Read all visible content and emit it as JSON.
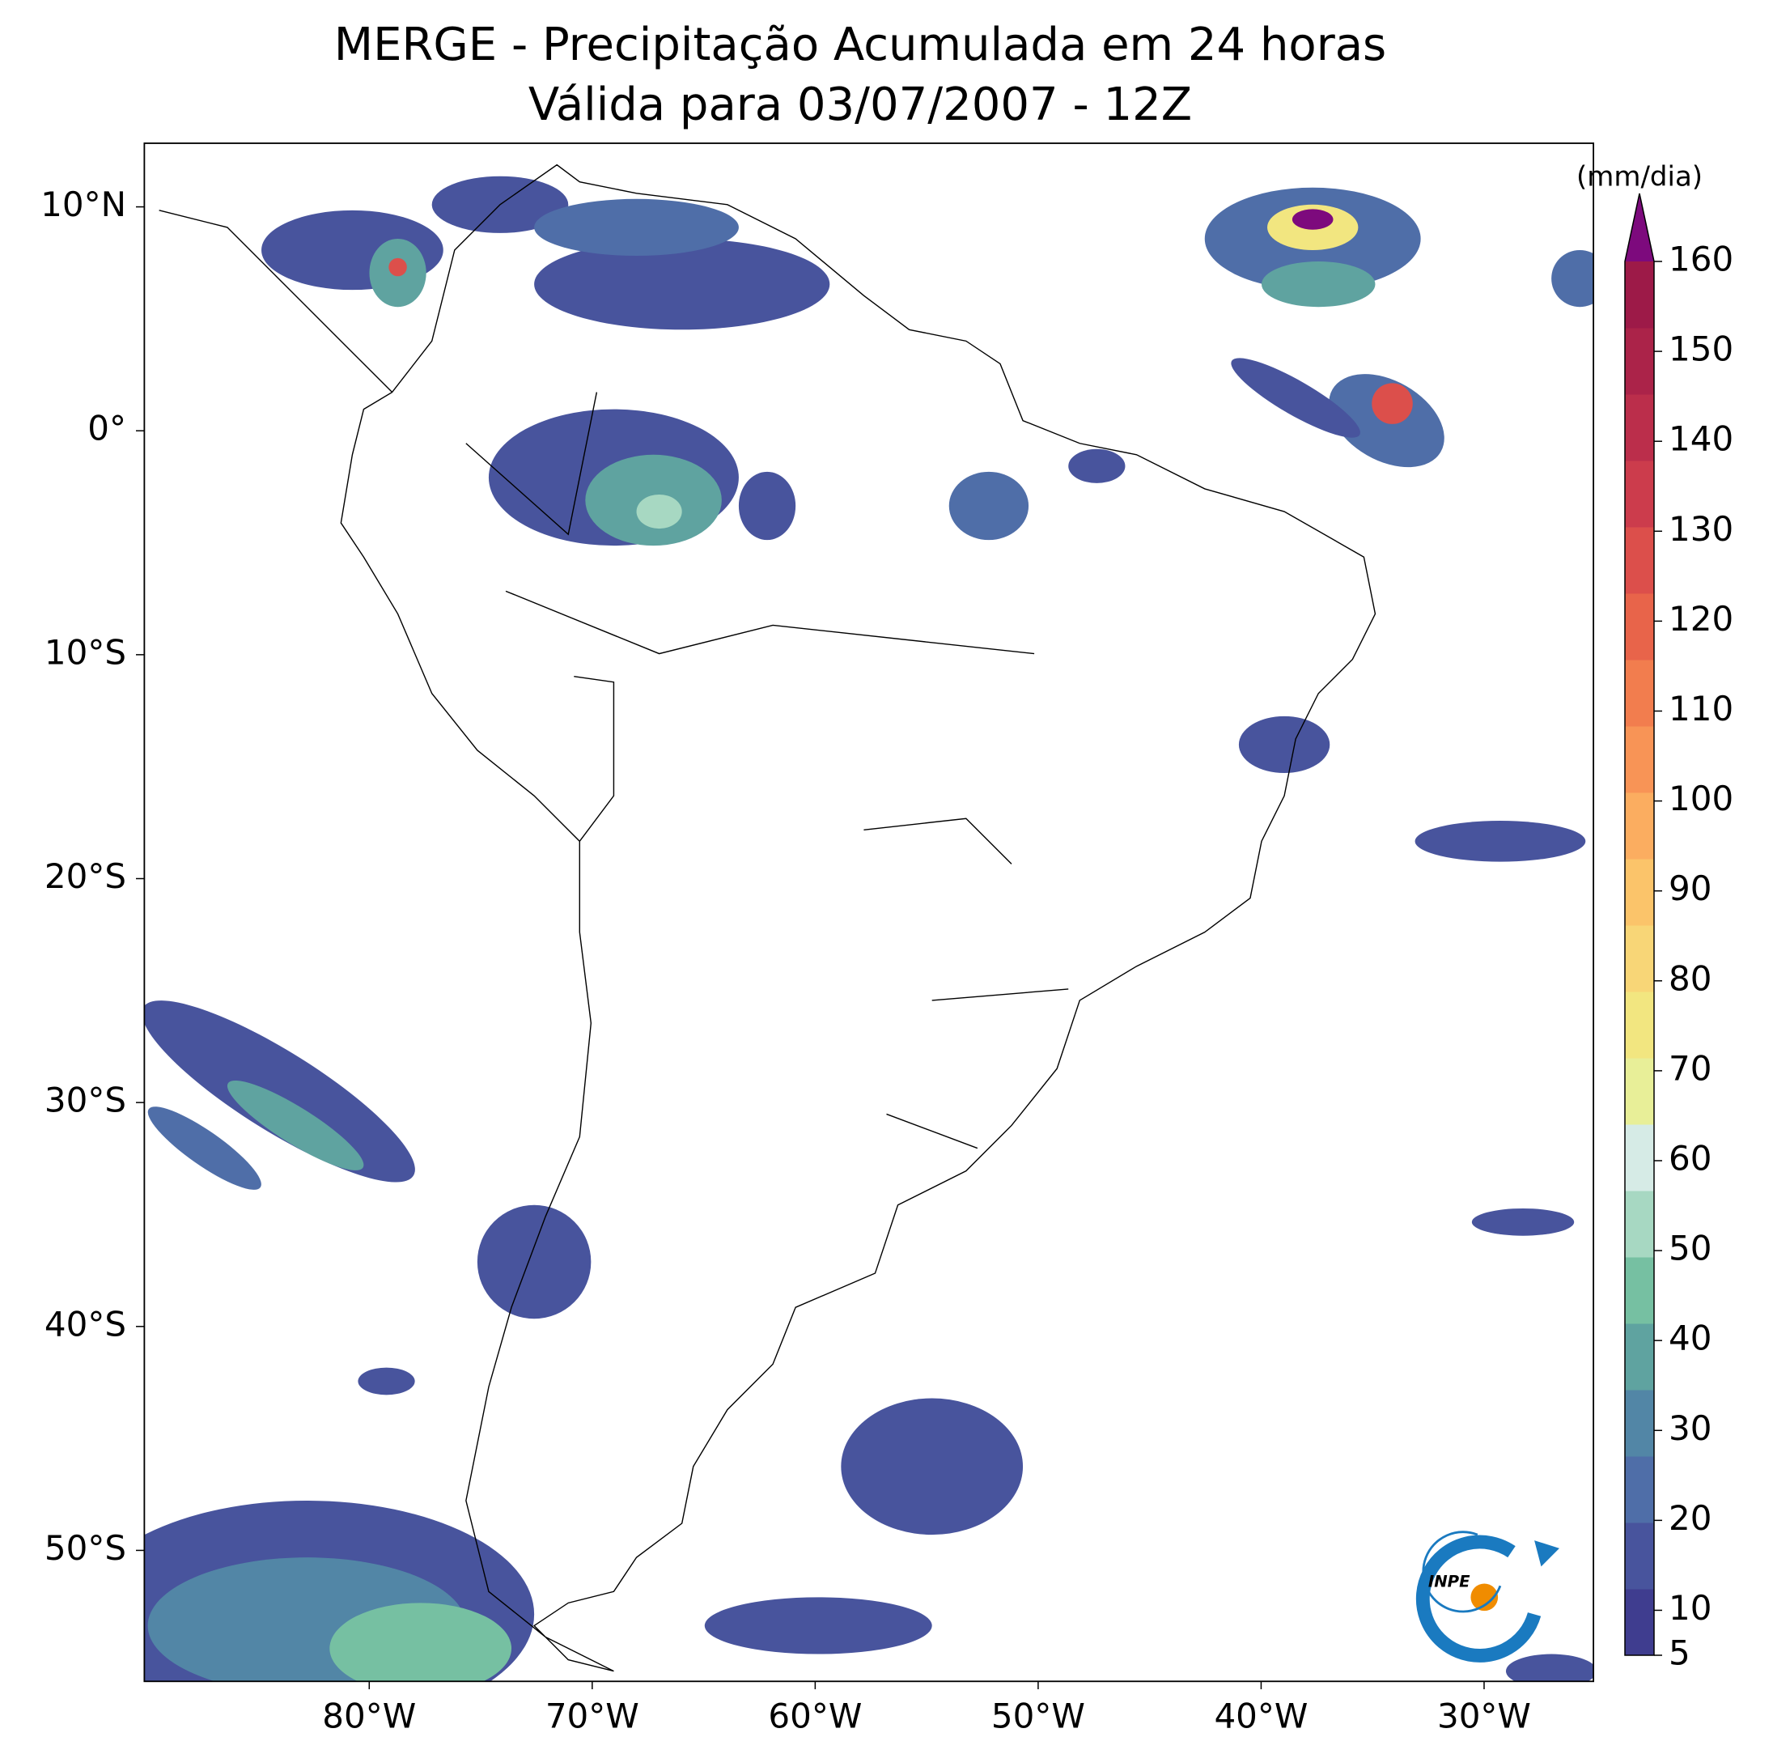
{
  "title": "MERGE - Precipitação Acumulada em 24 horas",
  "subtitle": "Válida para 03/07/2007 - 12Z",
  "map": {
    "xlim": [
      -90.1,
      -25.1
    ],
    "ylim": [
      -55.84,
      12.84
    ],
    "xticks": [
      {
        "value": -80,
        "label": "80°W"
      },
      {
        "value": -70,
        "label": "70°W"
      },
      {
        "value": -60,
        "label": "60°W"
      },
      {
        "value": -50,
        "label": "50°W"
      },
      {
        "value": -40,
        "label": "40°W"
      },
      {
        "value": -30,
        "label": "30°W"
      }
    ],
    "yticks": [
      {
        "value": 10,
        "label": "10°N"
      },
      {
        "value": 0,
        "label": "0°"
      },
      {
        "value": -10,
        "label": "10°S"
      },
      {
        "value": -20,
        "label": "20°S"
      },
      {
        "value": -30,
        "label": "30°S"
      },
      {
        "value": -40,
        "label": "40°S"
      },
      {
        "value": -50,
        "label": "50°S"
      }
    ]
  },
  "colorbar": {
    "label": "(mm/dia)",
    "lim": [
      5,
      160
    ],
    "ticks": [
      5,
      10,
      20,
      30,
      40,
      50,
      60,
      70,
      80,
      90,
      100,
      110,
      120,
      130,
      140,
      150,
      160
    ],
    "colors": [
      "#3f3d8f",
      "#48549d",
      "#4f6ea8",
      "#5286a6",
      "#5fa3a0",
      "#76c0a2",
      "#a7d8c2",
      "#d6ebe6",
      "#e8ef98",
      "#f2e680",
      "#f8d677",
      "#fbc46a",
      "#fbad60",
      "#f89456",
      "#f27d4e",
      "#e8644a",
      "#dc4f4b",
      "#cc3c4c",
      "#bb2e4b",
      "#ab2349",
      "#9d1a48"
    ],
    "extend_color": "#7d0a7d"
  },
  "logo": {
    "text": "INPE"
  }
}
